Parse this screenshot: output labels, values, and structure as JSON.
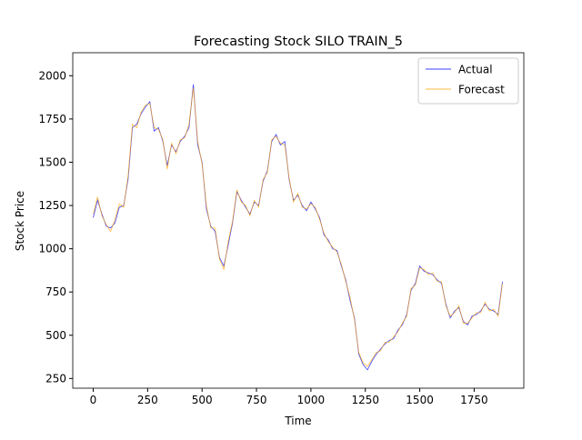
{
  "chart_data": {
    "type": "line",
    "title": "Forecasting Stock SILO TRAIN_5",
    "x_label": "Time",
    "y_label": "Stock Price",
    "x": [
      0,
      20,
      40,
      60,
      80,
      100,
      120,
      140,
      160,
      180,
      200,
      220,
      240,
      260,
      280,
      300,
      320,
      340,
      360,
      380,
      400,
      420,
      440,
      460,
      480,
      500,
      520,
      540,
      560,
      580,
      600,
      620,
      640,
      660,
      680,
      700,
      720,
      740,
      760,
      780,
      800,
      820,
      840,
      860,
      880,
      900,
      920,
      940,
      960,
      980,
      1000,
      1020,
      1040,
      1060,
      1080,
      1100,
      1120,
      1140,
      1160,
      1180,
      1200,
      1220,
      1240,
      1260,
      1280,
      1300,
      1320,
      1340,
      1360,
      1380,
      1400,
      1420,
      1440,
      1460,
      1480,
      1500,
      1520,
      1540,
      1560,
      1580,
      1600,
      1620,
      1640,
      1660,
      1680,
      1700,
      1720,
      1740,
      1760,
      1780,
      1800,
      1820,
      1840,
      1860,
      1880
    ],
    "series": [
      {
        "name": "Actual",
        "color": "#0000ff",
        "values": [
          1180,
          1280,
          1200,
          1130,
          1120,
          1150,
          1240,
          1250,
          1400,
          1700,
          1720,
          1780,
          1820,
          1850,
          1680,
          1700,
          1620,
          1480,
          1600,
          1560,
          1620,
          1650,
          1700,
          1950,
          1600,
          1500,
          1230,
          1130,
          1100,
          950,
          900,
          1020,
          1150,
          1330,
          1280,
          1240,
          1200,
          1270,
          1250,
          1390,
          1450,
          1620,
          1660,
          1600,
          1620,
          1400,
          1280,
          1310,
          1250,
          1220,
          1270,
          1230,
          1180,
          1080,
          1050,
          1000,
          990,
          900,
          820,
          700,
          600,
          390,
          330,
          300,
          350,
          390,
          420,
          450,
          470,
          480,
          530,
          560,
          620,
          760,
          800,
          900,
          870,
          860,
          850,
          820,
          800,
          680,
          600,
          640,
          660,
          580,
          560,
          610,
          620,
          640,
          680,
          650,
          640,
          620,
          810
        ]
      },
      {
        "name": "Forecast",
        "color": "#ffa500",
        "values": [
          1200,
          1300,
          1190,
          1140,
          1100,
          1170,
          1260,
          1240,
          1420,
          1720,
          1700,
          1790,
          1830,
          1840,
          1700,
          1690,
          1630,
          1460,
          1610,
          1550,
          1630,
          1640,
          1720,
          1930,
          1620,
          1490,
          1250,
          1120,
          1120,
          940,
          880,
          1040,
          1160,
          1340,
          1270,
          1250,
          1190,
          1280,
          1240,
          1400,
          1440,
          1630,
          1650,
          1610,
          1600,
          1410,
          1270,
          1320,
          1240,
          1230,
          1260,
          1240,
          1170,
          1090,
          1040,
          1010,
          980,
          910,
          810,
          720,
          590,
          400,
          340,
          320,
          360,
          400,
          410,
          460,
          460,
          490,
          520,
          570,
          610,
          770,
          790,
          890,
          880,
          850,
          860,
          810,
          810,
          670,
          610,
          630,
          670,
          570,
          570,
          600,
          630,
          630,
          690,
          640,
          650,
          610,
          800
        ]
      }
    ],
    "xlim": [
      -94,
      1978
    ],
    "xticks": [
      0,
      250,
      500,
      750,
      1000,
      1250,
      1500,
      1750
    ],
    "ylim": [
      194,
      2133
    ],
    "yticks": [
      250,
      500,
      750,
      1000,
      1250,
      1500,
      1750,
      2000
    ],
    "legend": "upper right"
  }
}
